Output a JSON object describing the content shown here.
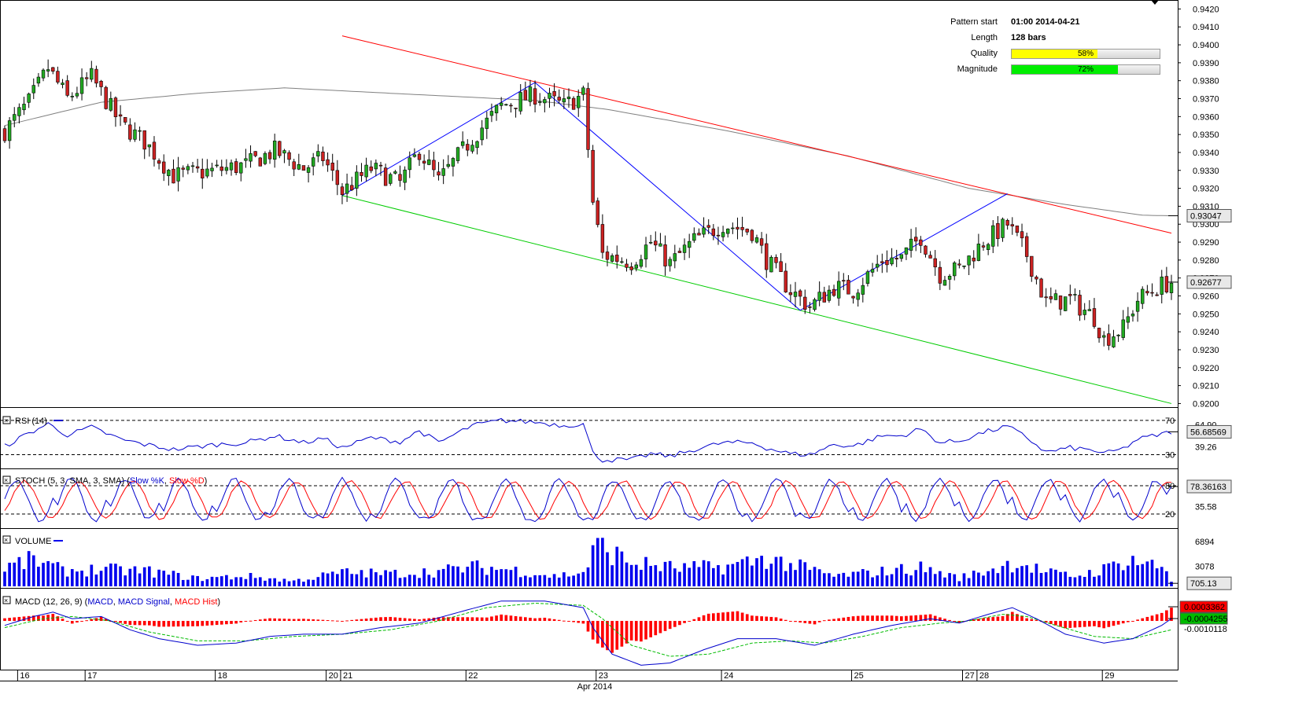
{
  "pattern": {
    "start_label": "Pattern start",
    "start_value": "01:00 2014-04-21",
    "length_label": "Length",
    "length_value": "128 bars",
    "quality_label": "Quality",
    "quality_value": "58%",
    "quality_fraction": 0.58,
    "quality_color": "#ffff00",
    "magnitude_label": "Magnitude",
    "magnitude_value": "72%",
    "magnitude_fraction": 0.72,
    "magnitude_color": "#00ee00"
  },
  "chart_data": [
    {
      "type": "candlestick",
      "name": "price",
      "ylim": [
        0.9198,
        0.9425
      ],
      "ticks": [
        0.942,
        0.941,
        0.94,
        0.939,
        0.938,
        0.937,
        0.936,
        0.935,
        0.934,
        0.933,
        0.932,
        0.931,
        0.93,
        0.929,
        0.928,
        0.927,
        0.926,
        0.925,
        0.924,
        0.923,
        0.922,
        0.921,
        0.92
      ],
      "tick_labels": [
        "0.9420",
        "0.9410",
        "0.9400",
        "0.9390",
        "0.9380",
        "0.9370",
        "0.9360",
        "0.9350",
        "0.9340",
        "0.9330",
        "0.9320",
        "0.9310",
        "0.9300",
        "0.9290",
        "0.9280",
        "0.9270",
        "0.9260",
        "0.9250",
        "0.9240",
        "0.9230",
        "0.9220",
        "0.9210",
        "0.9200"
      ],
      "x_labels": [
        "16",
        "17",
        "18",
        "20",
        "21",
        "22",
        "23",
        "24",
        "25",
        "27",
        "28",
        "29"
      ],
      "x_label_positions": [
        3,
        17,
        44,
        67,
        70,
        96,
        123,
        149,
        176,
        199,
        202,
        228
      ],
      "month_label": "Apr 2014",
      "bar_count": 243,
      "ma_value_label": "0.93047",
      "ma_value": 0.93047,
      "ma_color": "#808080",
      "last_value_label": "0.92677",
      "last_value": 0.92677,
      "up_color": "#22aa22",
      "down_color": "#cc2222",
      "ma_path": [
        [
          0,
          0.9355
        ],
        [
          20,
          0.9368
        ],
        [
          40,
          0.9373
        ],
        [
          58,
          0.9376
        ],
        [
          80,
          0.9373
        ],
        [
          110,
          0.9369
        ],
        [
          125,
          0.9364
        ],
        [
          150,
          0.9352
        ],
        [
          175,
          0.9338
        ],
        [
          200,
          0.932
        ],
        [
          220,
          0.9311
        ],
        [
          236,
          0.9305
        ],
        [
          242,
          0.93047
        ]
      ],
      "channel_upper": [
        [
          70,
          0.9405
        ],
        [
          242,
          0.9295
        ]
      ],
      "channel_lower": [
        [
          70,
          0.9316
        ],
        [
          242,
          0.92
        ]
      ],
      "channel_upper_color": "#ff0000",
      "channel_lower_color": "#00cc00",
      "zigzag": [
        [
          70,
          0.9316
        ],
        [
          110,
          0.9379
        ],
        [
          165,
          0.9252
        ],
        [
          208,
          0.9317
        ]
      ],
      "zigzag_color": "#0000ff",
      "anchors": [
        [
          0,
          0.9352
        ],
        [
          5,
          0.9368
        ],
        [
          9,
          0.9387
        ],
        [
          13,
          0.937
        ],
        [
          18,
          0.9382
        ],
        [
          24,
          0.9356
        ],
        [
          29,
          0.9346
        ],
        [
          35,
          0.9327
        ],
        [
          44,
          0.933
        ],
        [
          50,
          0.9333
        ],
        [
          56,
          0.9341
        ],
        [
          62,
          0.9331
        ],
        [
          66,
          0.9337
        ],
        [
          70,
          0.9318
        ],
        [
          76,
          0.9331
        ],
        [
          82,
          0.9323
        ],
        [
          86,
          0.9341
        ],
        [
          90,
          0.9324
        ],
        [
          97,
          0.9348
        ],
        [
          103,
          0.9366
        ],
        [
          110,
          0.9372
        ],
        [
          116,
          0.9366
        ],
        [
          120,
          0.9372
        ],
        [
          122,
          0.9312
        ],
        [
          124,
          0.9283
        ],
        [
          130,
          0.9279
        ],
        [
          134,
          0.929
        ],
        [
          138,
          0.9278
        ],
        [
          143,
          0.9291
        ],
        [
          149,
          0.93
        ],
        [
          155,
          0.9296
        ],
        [
          158,
          0.928
        ],
        [
          163,
          0.9263
        ],
        [
          167,
          0.9254
        ],
        [
          172,
          0.9265
        ],
        [
          176,
          0.9263
        ],
        [
          182,
          0.928
        ],
        [
          186,
          0.9281
        ],
        [
          190,
          0.9293
        ],
        [
          194,
          0.9272
        ],
        [
          198,
          0.9275
        ],
        [
          203,
          0.929
        ],
        [
          208,
          0.93
        ],
        [
          212,
          0.9283
        ],
        [
          216,
          0.9256
        ],
        [
          221,
          0.9258
        ],
        [
          226,
          0.9248
        ],
        [
          228,
          0.9236
        ],
        [
          232,
          0.9242
        ],
        [
          235,
          0.9258
        ],
        [
          240,
          0.9266
        ],
        [
          242,
          0.92677
        ]
      ]
    },
    {
      "type": "line",
      "name": "RSI",
      "label": "RSI (14)",
      "ylim": [
        14,
        80
      ],
      "levels": [
        70,
        30
      ],
      "level_labels": [
        "70",
        "30"
      ],
      "extra_tick_label": "39.26",
      "overlay_label": "64.90",
      "value_label": "56.68569",
      "value": 56.68569,
      "color": "#0000cc",
      "anchors": [
        [
          0,
          40
        ],
        [
          5,
          55
        ],
        [
          9,
          66
        ],
        [
          13,
          53
        ],
        [
          18,
          62
        ],
        [
          24,
          48
        ],
        [
          29,
          42
        ],
        [
          35,
          36
        ],
        [
          44,
          42
        ],
        [
          50,
          44
        ],
        [
          56,
          52
        ],
        [
          62,
          44
        ],
        [
          66,
          49
        ],
        [
          70,
          38
        ],
        [
          76,
          50
        ],
        [
          82,
          45
        ],
        [
          86,
          58
        ],
        [
          90,
          44
        ],
        [
          97,
          64
        ],
        [
          103,
          70
        ],
        [
          110,
          68
        ],
        [
          116,
          64
        ],
        [
          120,
          66
        ],
        [
          122,
          32
        ],
        [
          124,
          24
        ],
        [
          130,
          24
        ],
        [
          134,
          31
        ],
        [
          138,
          28
        ],
        [
          143,
          36
        ],
        [
          149,
          44
        ],
        [
          155,
          44
        ],
        [
          158,
          38
        ],
        [
          163,
          31
        ],
        [
          167,
          30
        ],
        [
          172,
          42
        ],
        [
          176,
          40
        ],
        [
          182,
          52
        ],
        [
          186,
          52
        ],
        [
          190,
          60
        ],
        [
          194,
          44
        ],
        [
          198,
          46
        ],
        [
          203,
          56
        ],
        [
          208,
          63
        ],
        [
          212,
          50
        ],
        [
          216,
          33
        ],
        [
          221,
          38
        ],
        [
          226,
          35
        ],
        [
          228,
          31
        ],
        [
          232,
          37
        ],
        [
          235,
          48
        ],
        [
          240,
          54
        ],
        [
          242,
          56.7
        ]
      ]
    },
    {
      "type": "line",
      "name": "STOCH",
      "label": "STOCH (5, 3, SMA, 3, SMA)",
      "legend_k": "Slow %K",
      "legend_d": "Slow %D",
      "ylim": [
        -10,
        110
      ],
      "levels": [
        80,
        20
      ],
      "level_labels": [
        "80",
        "20"
      ],
      "extra_tick_label": "35.58",
      "value_label": "78.36163",
      "value": 78.36163,
      "color_k": "#0000cc",
      "color_d": "#ff0000",
      "phases": [
        0.0,
        0.9,
        1.7,
        2.6,
        3.2,
        3.9,
        4.8,
        5.6,
        6.2,
        7.1,
        8.0
      ],
      "period": 11.3
    },
    {
      "type": "bar",
      "name": "VOLUME",
      "label": "VOLUME",
      "ylim": [
        0,
        8500
      ],
      "tick_labels": [
        "6894",
        "3078"
      ],
      "ticks": [
        6894,
        3078
      ],
      "value_label": "705.13",
      "value": 705.13,
      "color": "#0000ee",
      "envelope": [
        [
          0,
          3200
        ],
        [
          6,
          4400
        ],
        [
          12,
          2600
        ],
        [
          20,
          2800
        ],
        [
          30,
          2500
        ],
        [
          40,
          1300
        ],
        [
          50,
          1700
        ],
        [
          60,
          900
        ],
        [
          70,
          2300
        ],
        [
          80,
          2100
        ],
        [
          90,
          2500
        ],
        [
          97,
          3200
        ],
        [
          105,
          2800
        ],
        [
          114,
          1700
        ],
        [
          120,
          2300
        ],
        [
          123,
          6894
        ],
        [
          130,
          3900
        ],
        [
          140,
          3000
        ],
        [
          150,
          3300
        ],
        [
          158,
          4700
        ],
        [
          166,
          3000
        ],
        [
          172,
          1700
        ],
        [
          180,
          2300
        ],
        [
          190,
          3100
        ],
        [
          198,
          1400
        ],
        [
          204,
          2700
        ],
        [
          210,
          4100
        ],
        [
          216,
          2300
        ],
        [
          222,
          1700
        ],
        [
          228,
          2800
        ],
        [
          233,
          4600
        ],
        [
          241,
          2900
        ],
        [
          242,
          705.13
        ]
      ]
    },
    {
      "type": "line",
      "name": "MACD",
      "label": "MACD (12, 26, 9)",
      "legend_macd": "MACD",
      "legend_signal": "MACD Signal",
      "legend_hist": "MACD Hist",
      "ylim": [
        -0.0022,
        0.00135
      ],
      "value_labels": [
        "0.0003362",
        "-0.0004255",
        "-0.0010118"
      ],
      "values": [
        0.0003362,
        -0.0004255,
        -0.0010118
      ],
      "color_macd": "#0000cc",
      "color_signal": "#00bb00",
      "color_hist": "#ff0000",
      "macd_path": [
        [
          0,
          -0.0002
        ],
        [
          6,
          0.0002
        ],
        [
          10,
          0.0004
        ],
        [
          14,
          0.0001
        ],
        [
          20,
          0.0002
        ],
        [
          26,
          -0.0004
        ],
        [
          32,
          -0.0008
        ],
        [
          40,
          -0.0011
        ],
        [
          48,
          -0.001
        ],
        [
          55,
          -0.0007
        ],
        [
          62,
          -0.0006
        ],
        [
          70,
          -0.0006
        ],
        [
          78,
          -0.0003
        ],
        [
          86,
          -0.0001
        ],
        [
          96,
          0.0005
        ],
        [
          103,
          0.0009
        ],
        [
          112,
          0.0009
        ],
        [
          120,
          0.0006
        ],
        [
          122,
          -0.0003
        ],
        [
          126,
          -0.0015
        ],
        [
          132,
          -0.002
        ],
        [
          138,
          -0.0019
        ],
        [
          145,
          -0.0013
        ],
        [
          152,
          -0.0008
        ],
        [
          160,
          -0.0008
        ],
        [
          168,
          -0.0011
        ],
        [
          176,
          -0.0006
        ],
        [
          184,
          -0.0002
        ],
        [
          192,
          0.0001
        ],
        [
          198,
          -0.0001
        ],
        [
          204,
          0.0003
        ],
        [
          209,
          0.0006
        ],
        [
          214,
          0.0001
        ],
        [
          220,
          -0.0006
        ],
        [
          228,
          -0.001
        ],
        [
          234,
          -0.0008
        ],
        [
          240,
          -0.0002
        ],
        [
          242,
          0.0001
        ]
      ],
      "signal_path": [
        [
          0,
          -0.0003
        ],
        [
          8,
          0.0001
        ],
        [
          14,
          0.0002
        ],
        [
          22,
          0.0
        ],
        [
          30,
          -0.0005
        ],
        [
          40,
          -0.0009
        ],
        [
          50,
          -0.0009
        ],
        [
          60,
          -0.0007
        ],
        [
          70,
          -0.0006
        ],
        [
          80,
          -0.0004
        ],
        [
          90,
          0.0
        ],
        [
          100,
          0.0006
        ],
        [
          110,
          0.0008
        ],
        [
          120,
          0.0007
        ],
        [
          124,
          0.0001
        ],
        [
          130,
          -0.0011
        ],
        [
          138,
          -0.0016
        ],
        [
          146,
          -0.0015
        ],
        [
          155,
          -0.001
        ],
        [
          163,
          -0.0009
        ],
        [
          170,
          -0.001
        ],
        [
          178,
          -0.0007
        ],
        [
          186,
          -0.0003
        ],
        [
          194,
          -0.0001
        ],
        [
          200,
          0.0
        ],
        [
          207,
          0.0003
        ],
        [
          212,
          0.0002
        ],
        [
          218,
          -0.0002
        ],
        [
          226,
          -0.0007
        ],
        [
          234,
          -0.0008
        ],
        [
          242,
          -0.0004
        ]
      ]
    }
  ]
}
